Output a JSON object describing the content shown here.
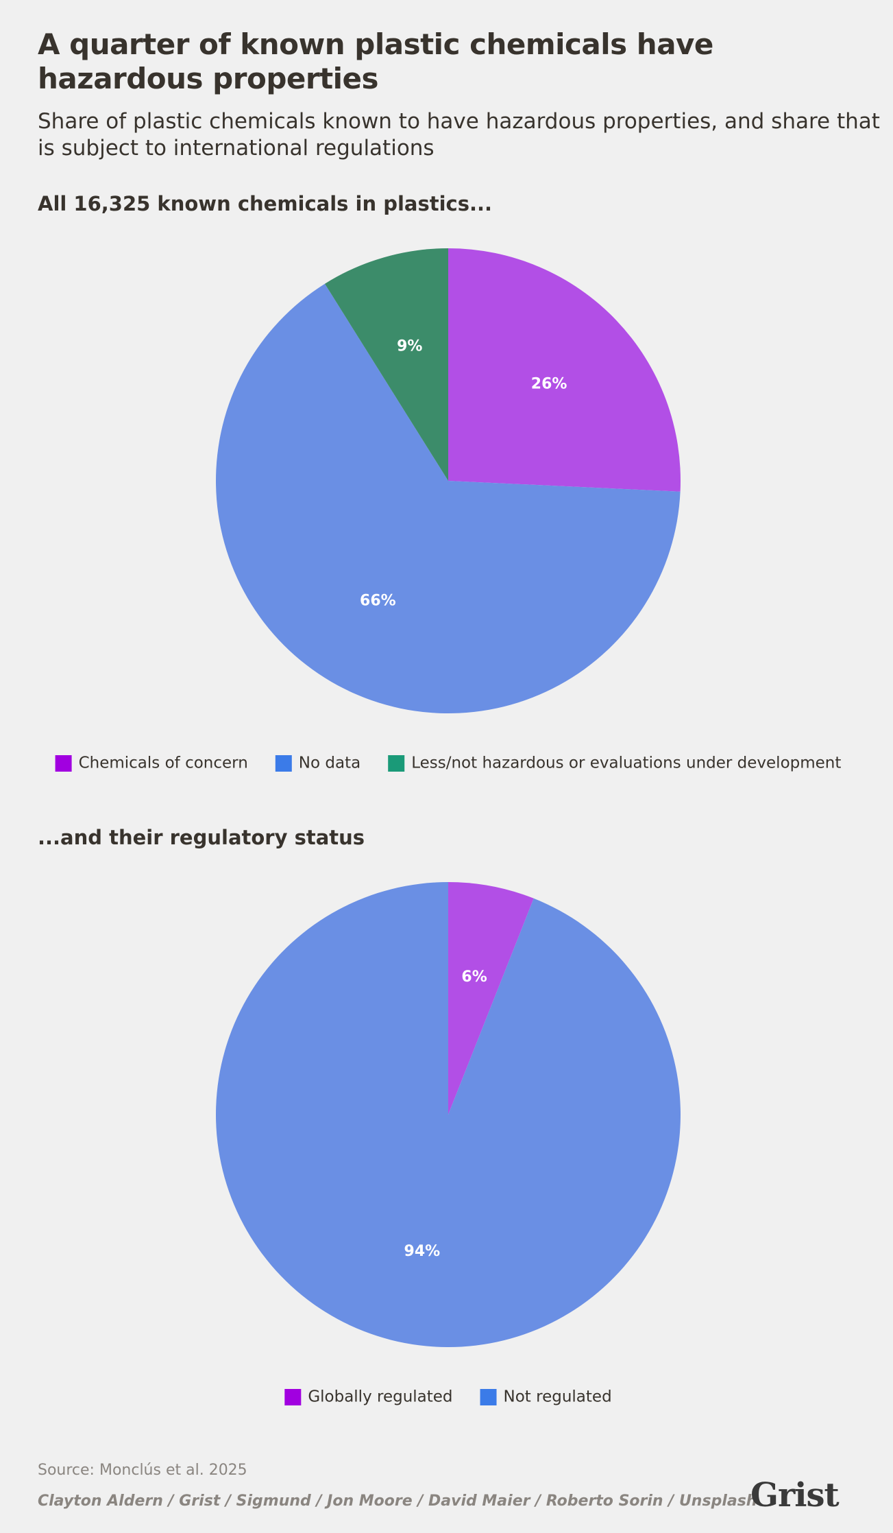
{
  "title": "A quarter of known plastic chemicals have hazardous properties",
  "subtitle": "Share of plastic chemicals known to have hazardous properties, and share that is subject to international regulations",
  "chart_data": [
    {
      "type": "pie",
      "title": "All 16,325 known chemicals in plastics...",
      "categories": [
        "Chemicals of concern",
        "No data",
        "Less/not hazardous or evaluations under development"
      ],
      "values": [
        26,
        66,
        9
      ],
      "value_labels": [
        "26%",
        "66%",
        "9%"
      ],
      "colors": [
        "#a100e0",
        "#3b7be8",
        "#1a9a78"
      ],
      "legend": "bottom"
    },
    {
      "type": "pie",
      "title": "...and their regulatory status",
      "categories": [
        "Globally regulated",
        "Not regulated"
      ],
      "values": [
        6,
        94
      ],
      "value_labels": [
        "6%",
        "94%"
      ],
      "colors": [
        "#a100e0",
        "#3b7be8"
      ],
      "legend": "bottom"
    }
  ],
  "source": "Source: Monclús et al. 2025",
  "credits": "Clayton Aldern / Grist / Sigmund / Jon Moore / David Maier / Roberto Sorin / Unsplash",
  "logo": "Grist"
}
